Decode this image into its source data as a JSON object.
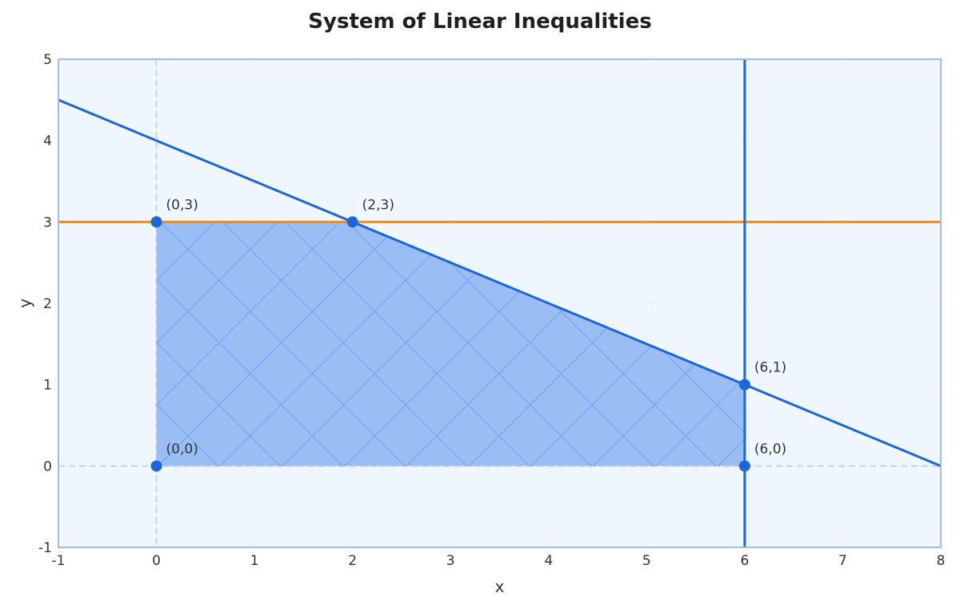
{
  "chart_data": {
    "type": "line",
    "title": "System of Linear Inequalities",
    "xlabel": "x",
    "ylabel": "y",
    "xlim": [
      -1,
      8
    ],
    "ylim": [
      -1,
      5
    ],
    "x_ticks": [
      -1,
      0,
      1,
      2,
      3,
      4,
      5,
      6,
      7,
      8
    ],
    "y_ticks": [
      -1,
      0,
      1,
      2,
      3,
      4,
      5
    ],
    "grid": true,
    "colors": {
      "plot_background": "#f0f6fd",
      "frame": "#9dbff0",
      "grid": "#dde7f3",
      "axis_zero": "#bcd6ee",
      "blue_line": "#1a66dc",
      "orange_line": "#f28c18",
      "region_fill": "#9abef4",
      "hatch": "#6f9ff0",
      "point": "#1a66dc",
      "text": "#333333"
    },
    "lines": [
      {
        "equation": "x + 2y = 8",
        "points": [
          [
            -1,
            4.5
          ],
          [
            8,
            0
          ]
        ],
        "color": "#1a66dc"
      },
      {
        "equation": "y = 3",
        "points": [
          [
            -1,
            3
          ],
          [
            8,
            3
          ]
        ],
        "color": "#f28c18"
      },
      {
        "equation": "x = 6",
        "points": [
          [
            6,
            -1
          ],
          [
            6,
            5
          ]
        ],
        "color": "#1a66dc"
      }
    ],
    "feasible_region": [
      [
        0,
        0
      ],
      [
        0,
        3
      ],
      [
        2,
        3
      ],
      [
        6,
        1
      ],
      [
        6,
        0
      ]
    ],
    "vertices": [
      {
        "x": 0,
        "y": 3,
        "label": "(0,3)"
      },
      {
        "x": 2,
        "y": 3,
        "label": "(2,3)"
      },
      {
        "x": 6,
        "y": 1,
        "label": "(6,1)"
      },
      {
        "x": 0,
        "y": 0,
        "label": "(0,0)"
      },
      {
        "x": 6,
        "y": 0,
        "label": "(6,0)"
      }
    ]
  }
}
